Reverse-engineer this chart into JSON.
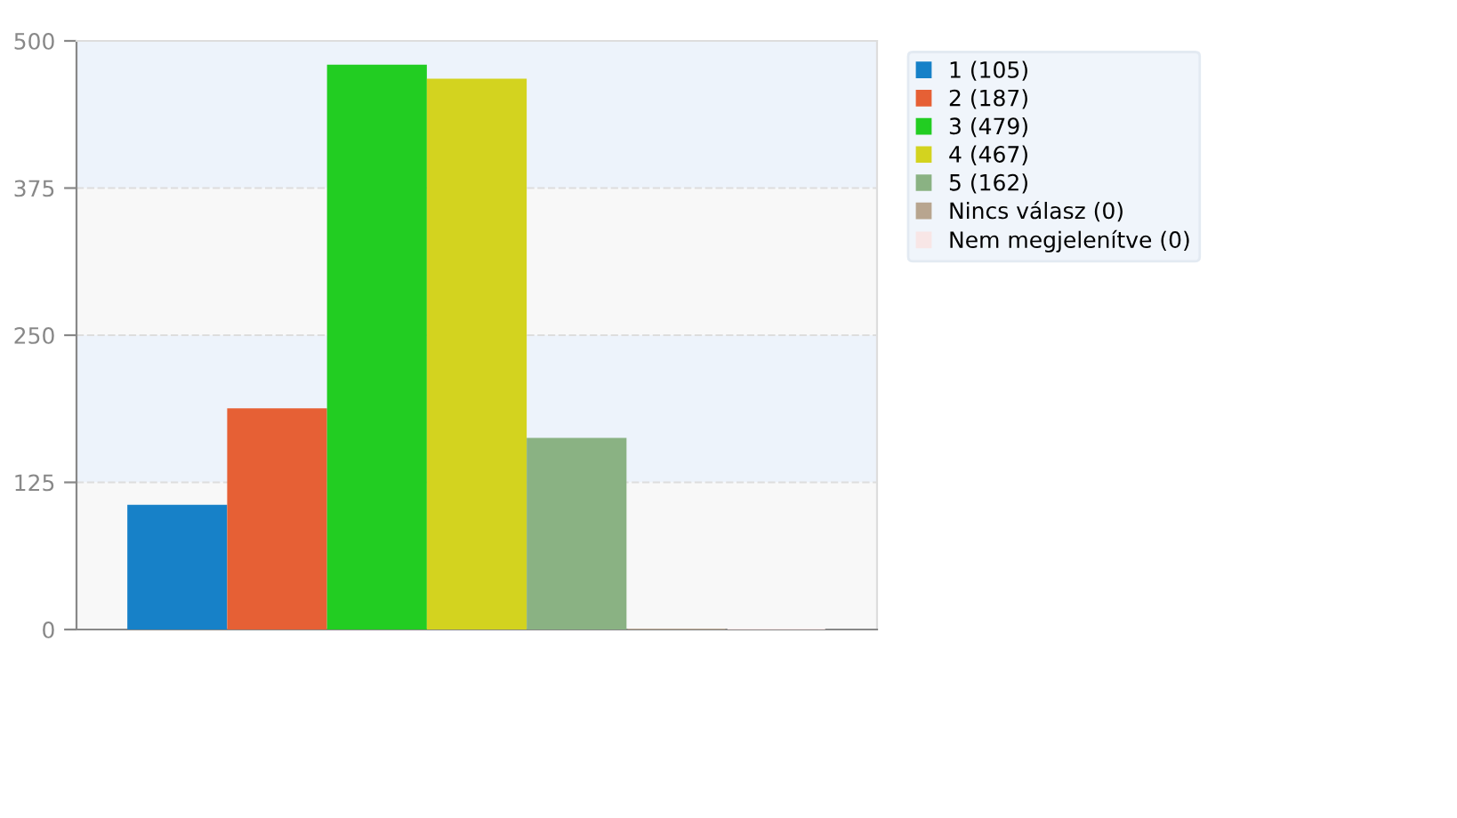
{
  "chart_data": {
    "type": "bar",
    "categories": [
      null
    ],
    "series": [
      {
        "name": "1 (105)",
        "color": "#1781c8",
        "values": [
          105
        ]
      },
      {
        "name": "2 (187)",
        "color": "#e66035",
        "values": [
          187
        ]
      },
      {
        "name": "3 (479)",
        "color": "#22cd22",
        "values": [
          479
        ]
      },
      {
        "name": "4 (467)",
        "color": "#d3d31f",
        "values": [
          467
        ]
      },
      {
        "name": "5 (162)",
        "color": "#8ab283",
        "values": [
          162
        ]
      },
      {
        "name": "Nincs válasz (0)",
        "color": "#b8a58f",
        "values": [
          0
        ]
      },
      {
        "name": "Nem megjelenítve (0)",
        "color": "#f8e6e6",
        "values": [
          0
        ]
      }
    ],
    "ylim": [
      0,
      500
    ],
    "yticks": [
      0,
      125,
      250,
      375,
      500
    ],
    "grid": "y",
    "legend": "top right",
    "bands": [
      {
        "axis": "y",
        "from": 0,
        "to": 125,
        "color": "#f8f8f8"
      },
      {
        "axis": "y",
        "from": 125,
        "to": 250,
        "color": "#edf3fb"
      },
      {
        "axis": "y",
        "from": 250,
        "to": 375,
        "color": "#f8f8f8"
      },
      {
        "axis": "y",
        "from": 375,
        "to": 500,
        "color": "#edf3fb"
      }
    ]
  }
}
